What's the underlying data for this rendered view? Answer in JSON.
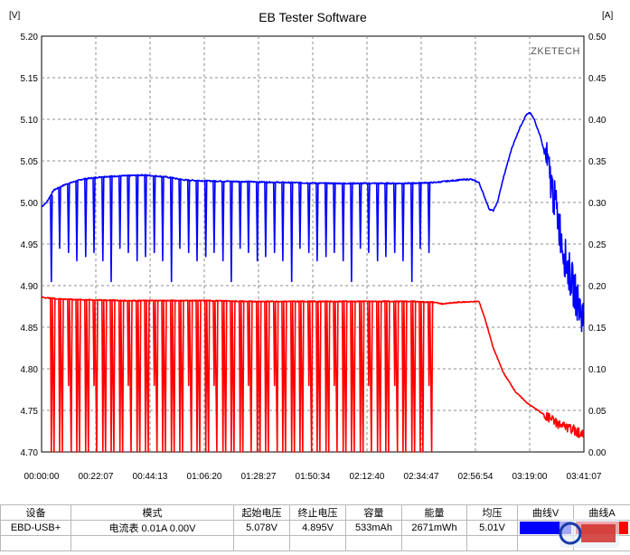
{
  "window": {
    "title": "EB Tester Software",
    "watermark": "ZKETECH"
  },
  "chart_data": {
    "type": "line",
    "title": "EB Tester Software",
    "x_ticks": [
      "00:00:00",
      "00:22:07",
      "00:44:13",
      "01:06:20",
      "01:28:27",
      "01:50:34",
      "02:12:40",
      "02:34:47",
      "02:56:54",
      "03:19:00",
      "03:41:07"
    ],
    "x_range_seconds": [
      0,
      13267
    ],
    "y_left": {
      "unit_label": "[V]",
      "range": [
        4.7,
        5.2
      ],
      "ticks": [
        "5.20",
        "5.15",
        "5.10",
        "5.05",
        "5.00",
        "4.95",
        "4.90",
        "4.85",
        "4.80",
        "4.75",
        "4.70"
      ]
    },
    "y_right": {
      "unit_label": "[A]",
      "range": [
        0.0,
        0.5
      ],
      "ticks": [
        "0.50",
        "0.45",
        "0.40",
        "0.35",
        "0.30",
        "0.25",
        "0.20",
        "0.15",
        "0.10",
        "0.05",
        "0.00"
      ]
    },
    "grid": true,
    "series": [
      {
        "axis": "left",
        "color": "#0000ff",
        "baseline": [
          [
            0,
            4.995
          ],
          [
            120,
            5.0
          ],
          [
            300,
            5.015
          ],
          [
            600,
            5.022
          ],
          [
            1000,
            5.028
          ],
          [
            1500,
            5.031
          ],
          [
            2000,
            5.032
          ],
          [
            2500,
            5.033
          ],
          [
            3000,
            5.031
          ],
          [
            3500,
            5.027
          ],
          [
            4000,
            5.026
          ],
          [
            5000,
            5.025
          ],
          [
            6000,
            5.024
          ],
          [
            7000,
            5.023
          ],
          [
            8000,
            5.023
          ],
          [
            9000,
            5.023
          ],
          [
            9600,
            5.024
          ],
          [
            10200,
            5.027
          ],
          [
            10500,
            5.028
          ],
          [
            10700,
            5.024
          ],
          [
            10850,
            5.005
          ],
          [
            10950,
            4.992
          ],
          [
            11050,
            4.99
          ],
          [
            11150,
            5.0
          ],
          [
            11300,
            5.03
          ],
          [
            11500,
            5.065
          ],
          [
            11700,
            5.09
          ],
          [
            11850,
            5.105
          ],
          [
            11950,
            5.108
          ],
          [
            12050,
            5.1
          ],
          [
            12200,
            5.08
          ],
          [
            12400,
            5.04
          ],
          [
            12600,
            4.99
          ],
          [
            12800,
            4.935
          ],
          [
            13000,
            4.9
          ],
          [
            13150,
            4.875
          ],
          [
            13267,
            4.86
          ]
        ],
        "spikes": {
          "from_seconds": 150,
          "to_seconds": 9600,
          "interval_seconds": 210,
          "low_values": [
            4.905,
            4.945,
            4.94,
            4.93,
            4.935,
            4.94,
            4.93
          ]
        },
        "noise_region_seconds": [
          12300,
          13267
        ]
      },
      {
        "axis": "right",
        "color": "#ff0000",
        "baseline": [
          [
            0,
            0.186
          ],
          [
            400,
            0.184
          ],
          [
            1000,
            0.183
          ],
          [
            2000,
            0.182
          ],
          [
            3000,
            0.182
          ],
          [
            4000,
            0.182
          ],
          [
            5000,
            0.181
          ],
          [
            6000,
            0.181
          ],
          [
            7000,
            0.181
          ],
          [
            8000,
            0.181
          ],
          [
            9000,
            0.181
          ],
          [
            9600,
            0.18
          ],
          [
            9800,
            0.178
          ],
          [
            10200,
            0.18
          ],
          [
            10700,
            0.181
          ],
          [
            10850,
            0.16
          ],
          [
            11050,
            0.125
          ],
          [
            11300,
            0.095
          ],
          [
            11600,
            0.072
          ],
          [
            11900,
            0.058
          ],
          [
            12200,
            0.048
          ],
          [
            12500,
            0.038
          ],
          [
            12800,
            0.03
          ],
          [
            13100,
            0.025
          ],
          [
            13267,
            0.02
          ]
        ],
        "spikes": {
          "from_seconds": 150,
          "to_seconds": 9600,
          "interval_seconds": 210,
          "low_values": [
            0.0,
            0.0,
            0.08,
            0.0,
            0.0,
            0.08,
            0.0
          ]
        },
        "noise_region_seconds": [
          12300,
          13267
        ]
      }
    ]
  },
  "table": {
    "headers": [
      "设备",
      "模式",
      "起始电压",
      "终止电压",
      "容量",
      "能量",
      "均压",
      "曲线V",
      "曲线A"
    ],
    "row": [
      "EBD-USB+",
      "电流表  0.01A  0.00V",
      "5.078V",
      "4.895V",
      "533mAh",
      "2671mWh",
      "5.01V",
      "",
      ""
    ],
    "curve_v_color": "#0000ff",
    "curve_a_color": "#ff0000"
  }
}
